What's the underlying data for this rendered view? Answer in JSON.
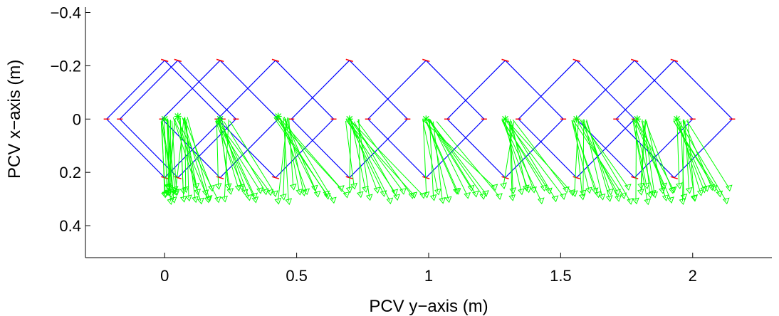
{
  "chart_data": {
    "type": "line",
    "xlabel": "PCV y−axis (m)",
    "ylabel": "PCV x−axis (m)",
    "xlim": [
      -0.3,
      2.3
    ],
    "ylim": [
      -0.42,
      0.52
    ],
    "y_reversed": true,
    "x_ticks": [
      0,
      0.5,
      1,
      1.5,
      2
    ],
    "x_tick_labels": [
      "0",
      "0.5",
      "1",
      "1.5",
      "2"
    ],
    "y_ticks": [
      -0.4,
      -0.2,
      0,
      0.2,
      0.4
    ],
    "y_tick_labels": [
      "−0.4",
      "−0.2",
      "0",
      "0.2",
      "0.4"
    ],
    "grid": false,
    "box": false,
    "colors": {
      "footprint": "#0000ff",
      "marker_tick": "#ff0000",
      "trajectory": "#00ff00",
      "axes": "#000000"
    },
    "footprint": {
      "shape": "diamond",
      "half_width_m": 0.22,
      "centers_x": [
        0,
        0.05,
        0.21,
        0.42,
        0.7,
        0.99,
        1.29,
        1.56,
        1.78,
        1.93
      ]
    },
    "trajectory_start_markers": {
      "marker": "asterisk",
      "x": [
        0,
        0.05,
        0.21,
        0.43,
        0.7,
        0.99,
        1.29,
        1.56,
        1.79,
        1.94
      ],
      "y": [
        0,
        -0.01,
        0,
        -0.01,
        0,
        0,
        0,
        0,
        0,
        0
      ]
    },
    "trajectory_end_region": {
      "y_min": 0.25,
      "y_max": 0.31,
      "x_min": 0,
      "x_max": 2.15
    }
  }
}
